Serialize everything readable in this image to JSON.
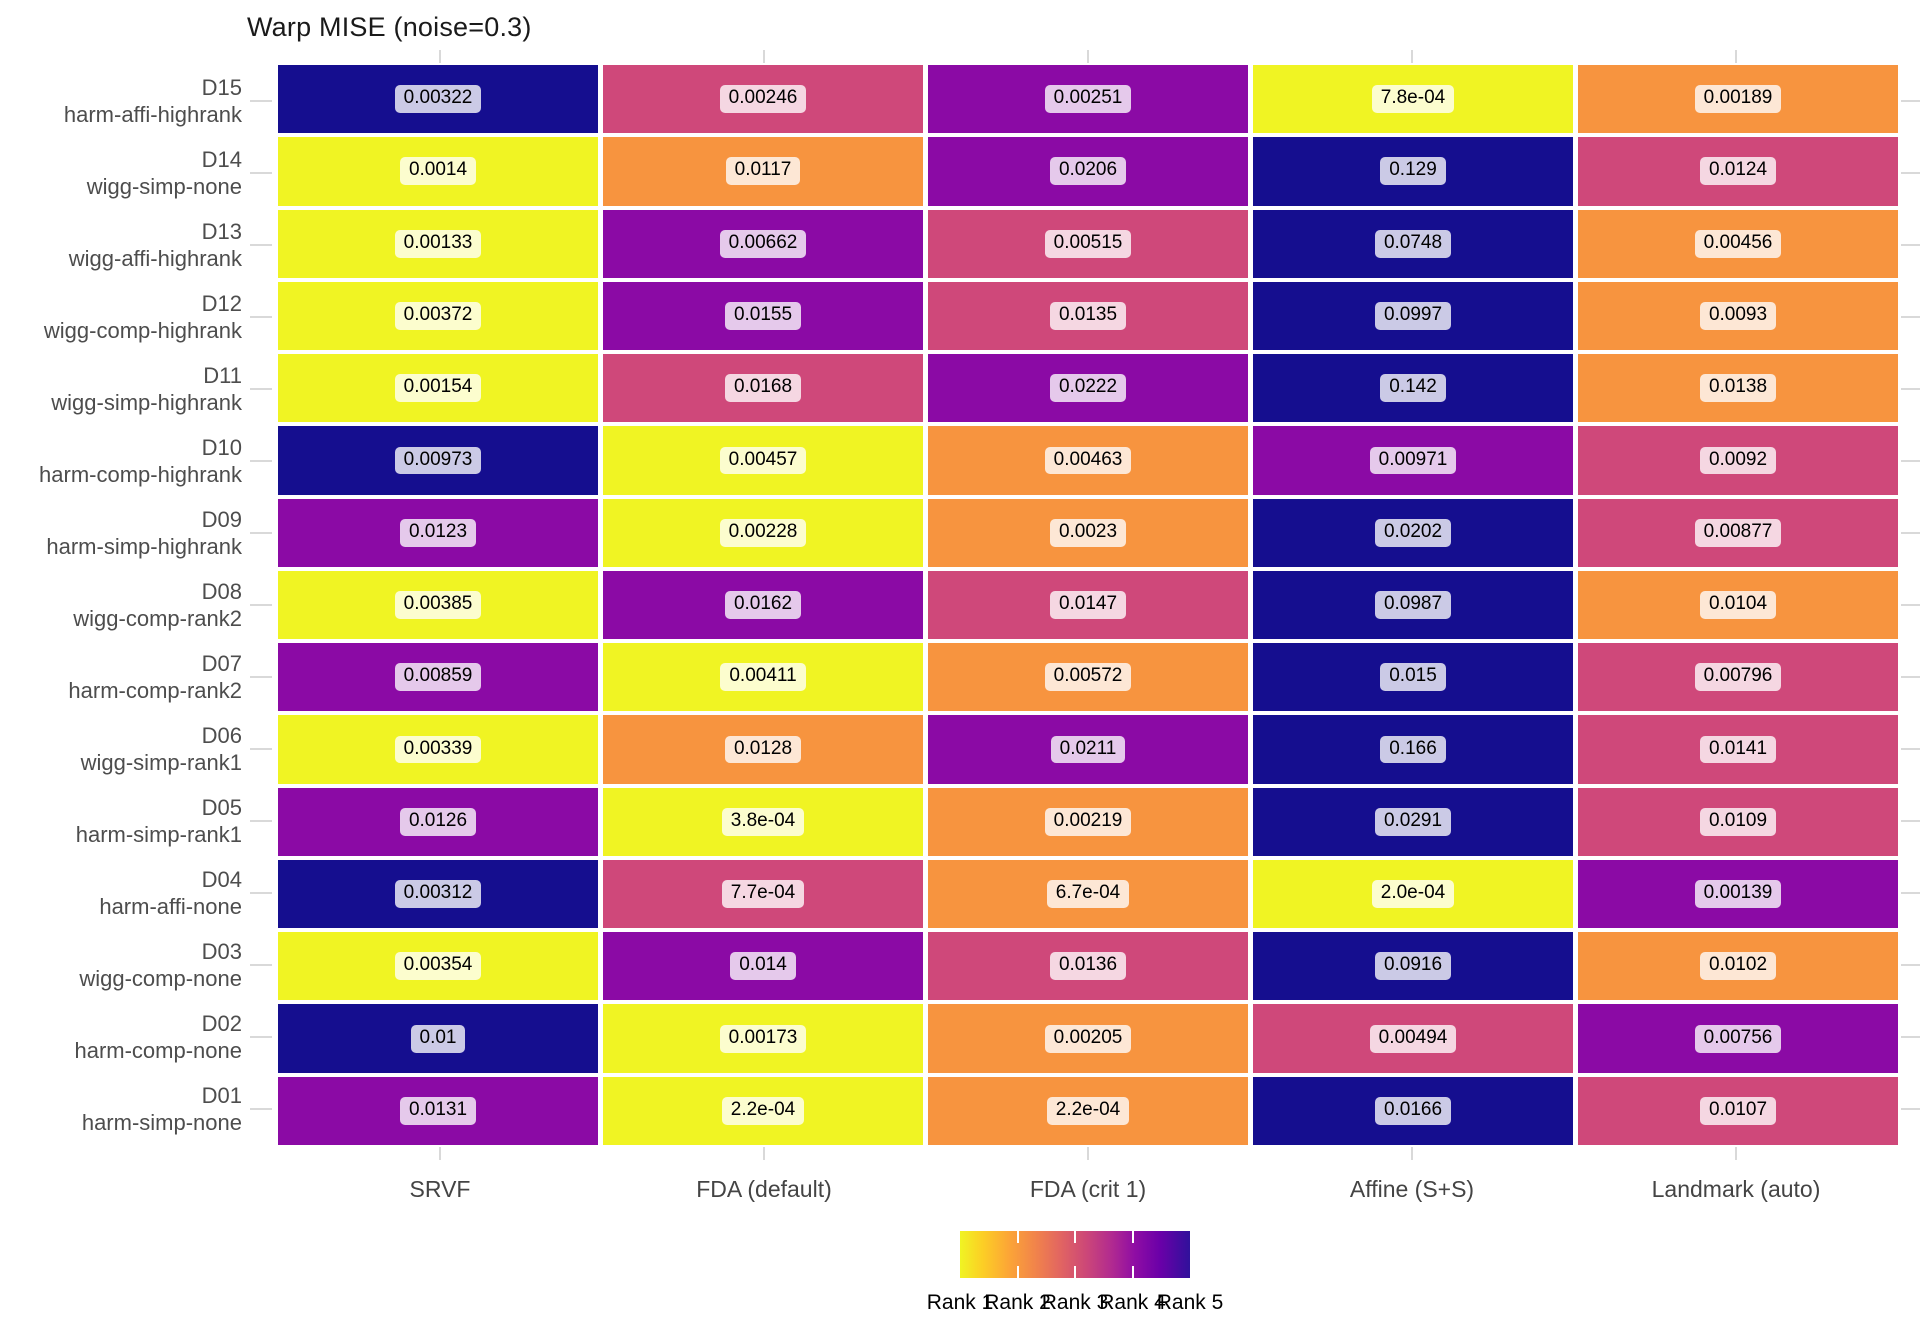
{
  "title": "Warp MISE (noise=0.3)",
  "chart_data": {
    "type": "heatmap",
    "title": "Warp MISE (noise=0.3)",
    "columns": [
      "SRVF",
      "FDA (default)",
      "FDA (crit 1)",
      "Affine (S+S)",
      "Landmark (auto)"
    ],
    "rows": [
      {
        "id": "D15",
        "label": "harm-affi-highrank",
        "values": [
          "0.00322",
          "0.00246",
          "0.00251",
          "7.8e-04",
          "0.00189"
        ],
        "ranks": [
          5,
          3,
          4,
          1,
          2
        ]
      },
      {
        "id": "D14",
        "label": "wigg-simp-none",
        "values": [
          "0.0014",
          "0.0117",
          "0.0206",
          "0.129",
          "0.0124"
        ],
        "ranks": [
          1,
          2,
          4,
          5,
          3
        ]
      },
      {
        "id": "D13",
        "label": "wigg-affi-highrank",
        "values": [
          "0.00133",
          "0.00662",
          "0.00515",
          "0.0748",
          "0.00456"
        ],
        "ranks": [
          1,
          4,
          3,
          5,
          2
        ]
      },
      {
        "id": "D12",
        "label": "wigg-comp-highrank",
        "values": [
          "0.00372",
          "0.0155",
          "0.0135",
          "0.0997",
          "0.0093"
        ],
        "ranks": [
          1,
          4,
          3,
          5,
          2
        ]
      },
      {
        "id": "D11",
        "label": "wigg-simp-highrank",
        "values": [
          "0.00154",
          "0.0168",
          "0.0222",
          "0.142",
          "0.0138"
        ],
        "ranks": [
          1,
          3,
          4,
          5,
          2
        ]
      },
      {
        "id": "D10",
        "label": "harm-comp-highrank",
        "values": [
          "0.00973",
          "0.00457",
          "0.00463",
          "0.00971",
          "0.0092"
        ],
        "ranks": [
          5,
          1,
          2,
          4,
          3
        ]
      },
      {
        "id": "D09",
        "label": "harm-simp-highrank",
        "values": [
          "0.0123",
          "0.00228",
          "0.0023",
          "0.0202",
          "0.00877"
        ],
        "ranks": [
          4,
          1,
          2,
          5,
          3
        ]
      },
      {
        "id": "D08",
        "label": "wigg-comp-rank2",
        "values": [
          "0.00385",
          "0.0162",
          "0.0147",
          "0.0987",
          "0.0104"
        ],
        "ranks": [
          1,
          4,
          3,
          5,
          2
        ]
      },
      {
        "id": "D07",
        "label": "harm-comp-rank2",
        "values": [
          "0.00859",
          "0.00411",
          "0.00572",
          "0.015",
          "0.00796"
        ],
        "ranks": [
          4,
          1,
          2,
          5,
          3
        ]
      },
      {
        "id": "D06",
        "label": "wigg-simp-rank1",
        "values": [
          "0.00339",
          "0.0128",
          "0.0211",
          "0.166",
          "0.0141"
        ],
        "ranks": [
          1,
          2,
          4,
          5,
          3
        ]
      },
      {
        "id": "D05",
        "label": "harm-simp-rank1",
        "values": [
          "0.0126",
          "3.8e-04",
          "0.00219",
          "0.0291",
          "0.0109"
        ],
        "ranks": [
          4,
          1,
          2,
          5,
          3
        ]
      },
      {
        "id": "D04",
        "label": "harm-affi-none",
        "values": [
          "0.00312",
          "7.7e-04",
          "6.7e-04",
          "2.0e-04",
          "0.00139"
        ],
        "ranks": [
          5,
          3,
          2,
          1,
          4
        ]
      },
      {
        "id": "D03",
        "label": "wigg-comp-none",
        "values": [
          "0.00354",
          "0.014",
          "0.0136",
          "0.0916",
          "0.0102"
        ],
        "ranks": [
          1,
          4,
          3,
          5,
          2
        ]
      },
      {
        "id": "D02",
        "label": "harm-comp-none",
        "values": [
          "0.01",
          "0.00173",
          "0.00205",
          "0.00494",
          "0.00756"
        ],
        "ranks": [
          5,
          1,
          2,
          3,
          4
        ]
      },
      {
        "id": "D01",
        "label": "harm-simp-none",
        "values": [
          "0.0131",
          "2.2e-04",
          "2.2e-04",
          "0.0166",
          "0.0107"
        ],
        "ranks": [
          4,
          1,
          2,
          5,
          3
        ]
      }
    ],
    "rank_colors": {
      "1": "#F0F423",
      "2": "#F7943F",
      "3": "#CF487A",
      "4": "#8B0AA5",
      "5": "#150E8F"
    },
    "legend": {
      "labels": [
        "Rank 1",
        "Rank 2",
        "Rank 3",
        "Rank 4",
        "Rank 5"
      ],
      "gradient_stops": [
        "#F0F423 0%",
        "#FCCE25 10%",
        "#FCA636 21%",
        "#F1834B 33%",
        "#E16462 44%",
        "#CC4778 55%",
        "#B12A90 66%",
        "#8F0DA4 76%",
        "#6A00A8 87%",
        "#30119B 100%"
      ],
      "tick_positions_pct": [
        25,
        50,
        75
      ]
    },
    "layout": {
      "grid_on": false,
      "legend_position": "bottom",
      "axis_tick_color": "#d9d9d9",
      "axis_text_color": "#4d4d4d"
    }
  }
}
